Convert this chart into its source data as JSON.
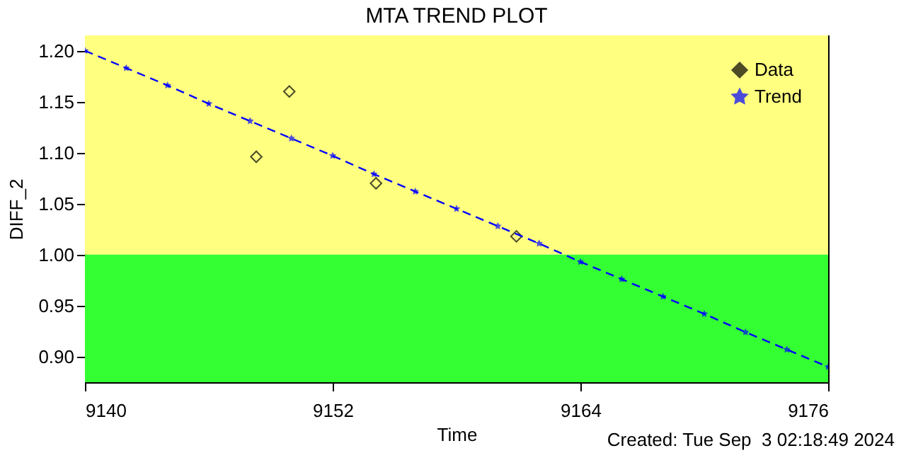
{
  "chart_data": {
    "type": "scatter",
    "title": "MTA TREND PLOT",
    "xlabel": "Time",
    "ylabel": "DIFF_2",
    "annotations": [
      "Created: Tue Sep  3 02:18:49 2024"
    ],
    "xlim": [
      9140,
      9176
    ],
    "xticks": [
      9140,
      9152,
      9164,
      9176
    ],
    "ylim": [
      0.875,
      1.215
    ],
    "yticks": [
      {
        "value": 0.9,
        "label": "0.90"
      },
      {
        "value": 0.95,
        "label": "0.95"
      },
      {
        "value": 1.0,
        "label": "1.00"
      },
      {
        "value": 1.05,
        "label": "1.05"
      },
      {
        "value": 1.1,
        "label": "1.10"
      },
      {
        "value": 1.15,
        "label": "1.15"
      },
      {
        "value": 1.2,
        "label": "1.20"
      }
    ],
    "bands": [
      {
        "axis": "y",
        "from": 1.0,
        "to": 1.215,
        "color": "#ffff80"
      },
      {
        "axis": "y",
        "from": 0.875,
        "to": 1.0,
        "color": "#33ff33"
      }
    ],
    "legend": "top right",
    "series": [
      {
        "name": "Data",
        "color": "#000000",
        "marker": "diamond",
        "x": [
          9148.3,
          9149.9,
          9154.1,
          9160.9
        ],
        "values": [
          1.096,
          1.16,
          1.07,
          1.018
        ]
      },
      {
        "name": "Trend",
        "type": "line",
        "color": "#0000ff",
        "marker": "star",
        "line_style": "dashed",
        "x": [
          9140,
          9142,
          9144,
          9146,
          9148,
          9150,
          9152,
          9154,
          9156,
          9158,
          9160,
          9162,
          9164,
          9166,
          9168,
          9170,
          9172,
          9174,
          9176
        ],
        "values": [
          1.2,
          1.183,
          1.166,
          1.148,
          1.131,
          1.114,
          1.097,
          1.079,
          1.062,
          1.045,
          1.028,
          1.011,
          0.993,
          0.976,
          0.959,
          0.942,
          0.924,
          0.907,
          0.89
        ]
      }
    ]
  }
}
